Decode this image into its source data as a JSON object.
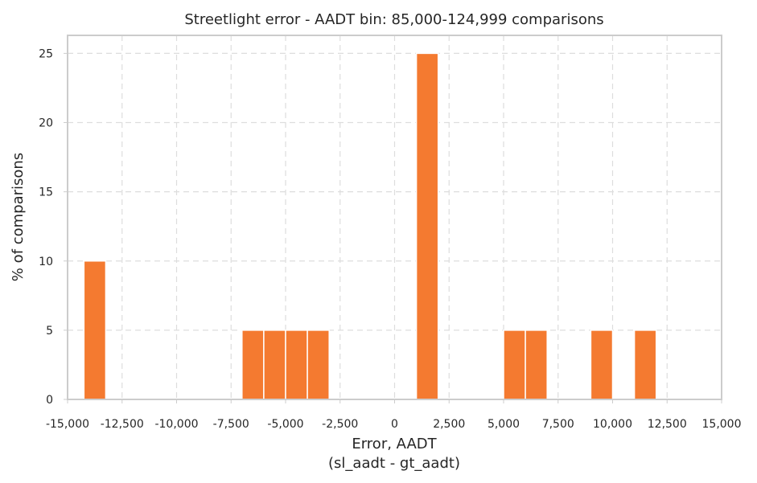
{
  "chart_data": {
    "type": "bar",
    "title": "Streetlight error - AADT bin: 85,000-124,999 comparisons",
    "xlabel": [
      "Error, AADT",
      "(sl_aadt - gt_aadt)"
    ],
    "ylabel": "% of comparisons",
    "xlim": [
      -15000,
      15000
    ],
    "ylim": [
      0,
      26.3
    ],
    "grid": true,
    "bar_color": "#f47a30",
    "bin_width": 1000,
    "x_ticks": [
      -15000,
      -12500,
      -10000,
      -7500,
      -5000,
      -2500,
      0,
      2500,
      5000,
      7500,
      10000,
      12500,
      15000
    ],
    "x_tick_labels": [
      "-15,000",
      "-12,500",
      "-10,000",
      "-7,500",
      "-5,000",
      "-2,500",
      "0",
      "2,500",
      "5,000",
      "7,500",
      "10,000",
      "12,500",
      "15,000"
    ],
    "y_ticks": [
      0,
      5,
      10,
      15,
      20,
      25
    ],
    "y_tick_labels": [
      "0",
      "5",
      "10",
      "15",
      "20",
      "25"
    ],
    "bins": [
      {
        "start": -14250,
        "end": -13250,
        "value": 10
      },
      {
        "start": -7000,
        "end": -6000,
        "value": 5
      },
      {
        "start": -6000,
        "end": -5000,
        "value": 5
      },
      {
        "start": -5000,
        "end": -4000,
        "value": 5
      },
      {
        "start": -4000,
        "end": -3000,
        "value": 5
      },
      {
        "start": 1000,
        "end": 2000,
        "value": 25
      },
      {
        "start": 5000,
        "end": 6000,
        "value": 5
      },
      {
        "start": 6000,
        "end": 7000,
        "value": 5
      },
      {
        "start": 9000,
        "end": 10000,
        "value": 5
      },
      {
        "start": 11000,
        "end": 12000,
        "value": 5
      }
    ]
  }
}
